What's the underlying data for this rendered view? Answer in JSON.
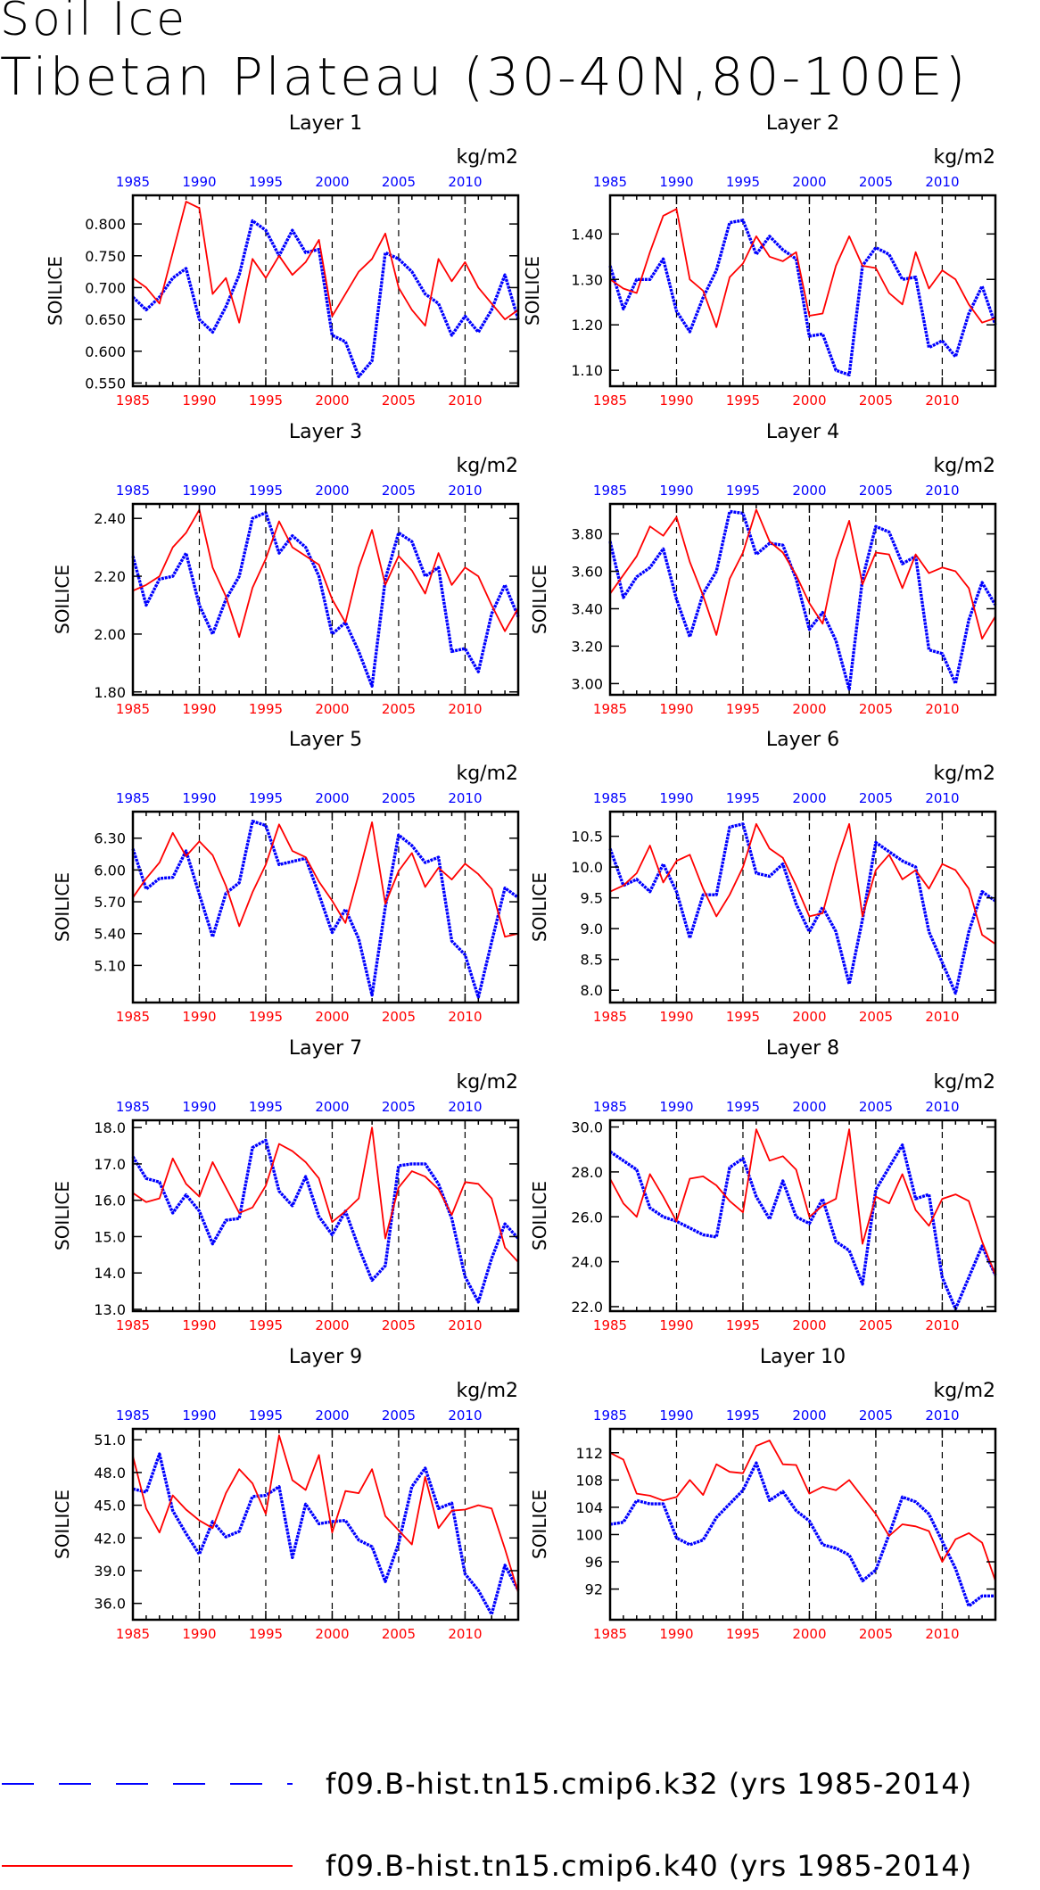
{
  "title": "Soil Ice",
  "subtitle": "Tibetan Plateau (30-40N,80-100E)",
  "legend": [
    {
      "label": "f09.B-hist.tn15.cmip6.k32 (yrs 1985-2014)",
      "color": "#0000ff",
      "style": "dashed"
    },
    {
      "label": "f09.B-hist.tn15.cmip6.k40 (yrs 1985-2014)",
      "color": "#ff0000",
      "style": "solid"
    }
  ],
  "chart_data": [
    {
      "type": "line",
      "title": "Layer 1",
      "ylabel": "SOILICE",
      "units": "kg/m2",
      "xlim": [
        1985,
        2014
      ],
      "ylim": [
        0.545,
        0.845
      ],
      "yticks": [
        "0.550",
        "0.600",
        "0.650",
        "0.700",
        "0.750",
        "0.800"
      ],
      "ytickvals": [
        0.55,
        0.6,
        0.65,
        0.7,
        0.75,
        0.8
      ],
      "xticks": [
        "1985",
        "1990",
        "1995",
        "2000",
        "2005",
        "2010"
      ],
      "series": [
        {
          "name": "f09.B-hist.tn15.cmip6.k32",
          "color": "#0000ff",
          "values": [
            0.685,
            0.665,
            0.685,
            0.715,
            0.73,
            0.65,
            0.63,
            0.67,
            0.72,
            0.805,
            0.79,
            0.75,
            0.79,
            0.755,
            0.76,
            0.625,
            0.615,
            0.56,
            0.585,
            0.755,
            0.745,
            0.725,
            0.69,
            0.675,
            0.625,
            0.655,
            0.63,
            0.665,
            0.72,
            0.65
          ]
        },
        {
          "name": "f09.B-hist.tn15.cmip6.k40",
          "color": "#ff0000",
          "values": [
            0.715,
            0.7,
            0.675,
            0.755,
            0.835,
            0.825,
            0.69,
            0.715,
            0.645,
            0.745,
            0.715,
            0.75,
            0.72,
            0.74,
            0.775,
            0.655,
            0.69,
            0.725,
            0.745,
            0.785,
            0.7,
            0.665,
            0.64,
            0.745,
            0.71,
            0.74,
            0.7,
            0.675,
            0.65,
            0.665
          ]
        }
      ]
    },
    {
      "type": "line",
      "title": "Layer 2",
      "ylabel": "SOILICE",
      "units": "kg/m2",
      "xlim": [
        1985,
        2014
      ],
      "ylim": [
        1.065,
        1.485
      ],
      "yticks": [
        "1.10",
        "1.20",
        "1.30",
        "1.40"
      ],
      "ytickvals": [
        1.1,
        1.2,
        1.3,
        1.4
      ],
      "xticks": [
        "1985",
        "1990",
        "1995",
        "2000",
        "2005",
        "2010"
      ],
      "series": [
        {
          "name": "f09.B-hist.tn15.cmip6.k32",
          "color": "#0000ff",
          "values": [
            1.33,
            1.235,
            1.3,
            1.3,
            1.345,
            1.23,
            1.185,
            1.26,
            1.32,
            1.425,
            1.43,
            1.355,
            1.395,
            1.365,
            1.345,
            1.175,
            1.18,
            1.1,
            1.09,
            1.33,
            1.37,
            1.355,
            1.3,
            1.305,
            1.15,
            1.165,
            1.13,
            1.225,
            1.285,
            1.2
          ]
        },
        {
          "name": "f09.B-hist.tn15.cmip6.k40",
          "color": "#ff0000",
          "values": [
            1.3,
            1.28,
            1.27,
            1.36,
            1.44,
            1.455,
            1.3,
            1.275,
            1.195,
            1.305,
            1.335,
            1.395,
            1.35,
            1.34,
            1.36,
            1.22,
            1.225,
            1.33,
            1.395,
            1.33,
            1.325,
            1.27,
            1.245,
            1.36,
            1.28,
            1.32,
            1.3,
            1.245,
            1.205,
            1.215
          ]
        }
      ]
    },
    {
      "type": "line",
      "title": "Layer 3",
      "ylabel": "SOILICE",
      "units": "kg/m2",
      "xlim": [
        1985,
        2014
      ],
      "ylim": [
        1.79,
        2.45
      ],
      "yticks": [
        "1.80",
        "2.00",
        "2.20",
        "2.40"
      ],
      "ytickvals": [
        1.8,
        2.0,
        2.2,
        2.4
      ],
      "xticks": [
        "1985",
        "1990",
        "1995",
        "2000",
        "2005",
        "2010"
      ],
      "series": [
        {
          "name": "f09.B-hist.tn15.cmip6.k32",
          "color": "#0000ff",
          "values": [
            2.27,
            2.1,
            2.19,
            2.2,
            2.28,
            2.1,
            2.0,
            2.12,
            2.2,
            2.4,
            2.42,
            2.28,
            2.34,
            2.3,
            2.2,
            2.0,
            2.04,
            1.94,
            1.82,
            2.19,
            2.35,
            2.32,
            2.2,
            2.23,
            1.94,
            1.95,
            1.87,
            2.07,
            2.17,
            2.06
          ]
        },
        {
          "name": "f09.B-hist.tn15.cmip6.k40",
          "color": "#ff0000",
          "values": [
            2.15,
            2.17,
            2.2,
            2.3,
            2.35,
            2.43,
            2.23,
            2.13,
            1.99,
            2.16,
            2.26,
            2.39,
            2.3,
            2.27,
            2.24,
            2.12,
            2.04,
            2.23,
            2.36,
            2.17,
            2.27,
            2.22,
            2.14,
            2.28,
            2.17,
            2.23,
            2.2,
            2.1,
            2.01,
            2.09
          ]
        }
      ]
    },
    {
      "type": "line",
      "title": "Layer 4",
      "ylabel": "SOILICE",
      "units": "kg/m2",
      "xlim": [
        1985,
        2014
      ],
      "ylim": [
        2.94,
        3.96
      ],
      "yticks": [
        "3.00",
        "3.20",
        "3.40",
        "3.60",
        "3.80"
      ],
      "ytickvals": [
        3.0,
        3.2,
        3.4,
        3.6,
        3.8
      ],
      "xticks": [
        "1985",
        "1990",
        "1995",
        "2000",
        "2005",
        "2010"
      ],
      "series": [
        {
          "name": "f09.B-hist.tn15.cmip6.k32",
          "color": "#0000ff",
          "values": [
            3.76,
            3.46,
            3.57,
            3.62,
            3.72,
            3.45,
            3.25,
            3.48,
            3.6,
            3.92,
            3.91,
            3.69,
            3.75,
            3.74,
            3.56,
            3.29,
            3.38,
            3.23,
            2.97,
            3.56,
            3.84,
            3.81,
            3.64,
            3.68,
            3.18,
            3.16,
            3.0,
            3.34,
            3.54,
            3.42
          ]
        },
        {
          "name": "f09.B-hist.tn15.cmip6.k40",
          "color": "#ff0000",
          "values": [
            3.48,
            3.58,
            3.68,
            3.84,
            3.79,
            3.89,
            3.65,
            3.47,
            3.26,
            3.56,
            3.7,
            3.93,
            3.76,
            3.7,
            3.58,
            3.43,
            3.32,
            3.66,
            3.87,
            3.53,
            3.7,
            3.69,
            3.51,
            3.69,
            3.59,
            3.62,
            3.6,
            3.51,
            3.24,
            3.36
          ]
        }
      ]
    },
    {
      "type": "line",
      "title": "Layer 5",
      "ylabel": "SOILICE",
      "units": "kg/m2",
      "xlim": [
        1985,
        2014
      ],
      "ylim": [
        4.75,
        6.55
      ],
      "yticks": [
        "5.10",
        "5.40",
        "5.70",
        "6.00",
        "6.30"
      ],
      "ytickvals": [
        5.1,
        5.4,
        5.7,
        6.0,
        6.3
      ],
      "xticks": [
        "1985",
        "1990",
        "1995",
        "2000",
        "2005",
        "2010"
      ],
      "series": [
        {
          "name": "f09.B-hist.tn15.cmip6.k32",
          "color": "#0000ff",
          "values": [
            6.2,
            5.82,
            5.92,
            5.93,
            6.18,
            5.77,
            5.37,
            5.78,
            5.88,
            6.46,
            6.42,
            6.05,
            6.08,
            6.11,
            5.77,
            5.41,
            5.63,
            5.35,
            4.82,
            5.65,
            6.33,
            6.23,
            6.07,
            6.12,
            5.33,
            5.2,
            4.8,
            5.32,
            5.83,
            5.74
          ]
        },
        {
          "name": "f09.B-hist.tn15.cmip6.k40",
          "color": "#ff0000",
          "values": [
            5.74,
            5.92,
            6.07,
            6.35,
            6.13,
            6.27,
            6.14,
            5.85,
            5.47,
            5.79,
            6.05,
            6.43,
            6.18,
            6.12,
            5.89,
            5.71,
            5.5,
            5.96,
            6.45,
            5.68,
            5.99,
            6.16,
            5.84,
            6.02,
            5.91,
            6.06,
            5.96,
            5.82,
            5.37,
            5.4
          ]
        }
      ]
    },
    {
      "type": "line",
      "title": "Layer 6",
      "ylabel": "SOILICE",
      "units": "kg/m2",
      "xlim": [
        1985,
        2014
      ],
      "ylim": [
        7.8,
        10.9
      ],
      "yticks": [
        "8.0",
        "8.5",
        "9.0",
        "9.5",
        "10.0",
        "10.5"
      ],
      "ytickvals": [
        8.0,
        8.5,
        9.0,
        9.5,
        10.0,
        10.5
      ],
      "xticks": [
        "1985",
        "1990",
        "1995",
        "2000",
        "2005",
        "2010"
      ],
      "series": [
        {
          "name": "f09.B-hist.tn15.cmip6.k32",
          "color": "#0000ff",
          "values": [
            10.3,
            9.7,
            9.8,
            9.6,
            10.05,
            9.6,
            8.85,
            9.55,
            9.55,
            10.65,
            10.7,
            9.9,
            9.85,
            10.05,
            9.4,
            8.95,
            9.35,
            8.95,
            8.1,
            9.15,
            10.4,
            10.25,
            10.1,
            10.0,
            8.95,
            8.45,
            7.95,
            8.95,
            9.6,
            9.45
          ]
        },
        {
          "name": "f09.B-hist.tn15.cmip6.k40",
          "color": "#ff0000",
          "values": [
            9.6,
            9.7,
            9.9,
            10.35,
            9.75,
            10.1,
            10.2,
            9.65,
            9.2,
            9.55,
            10.0,
            10.7,
            10.3,
            10.15,
            9.7,
            9.2,
            9.25,
            10.05,
            10.7,
            9.2,
            9.95,
            10.2,
            9.8,
            9.95,
            9.65,
            10.05,
            9.95,
            9.65,
            8.9,
            8.75
          ]
        }
      ]
    },
    {
      "type": "line",
      "title": "Layer 7",
      "ylabel": "SOILICE",
      "units": "kg/m2",
      "xlim": [
        1985,
        2014
      ],
      "ylim": [
        12.95,
        18.2
      ],
      "yticks": [
        "13.0",
        "14.0",
        "15.0",
        "16.0",
        "17.0",
        "18.0"
      ],
      "ytickvals": [
        13.0,
        14.0,
        15.0,
        16.0,
        17.0,
        18.0
      ],
      "xticks": [
        "1985",
        "1990",
        "1995",
        "2000",
        "2005",
        "2010"
      ],
      "series": [
        {
          "name": "f09.B-hist.tn15.cmip6.k32",
          "color": "#0000ff",
          "values": [
            17.2,
            16.6,
            16.5,
            15.65,
            16.15,
            15.7,
            14.8,
            15.45,
            15.5,
            17.45,
            17.65,
            16.25,
            15.85,
            16.65,
            15.55,
            15.05,
            15.7,
            14.7,
            13.8,
            14.2,
            16.95,
            17.0,
            17.0,
            16.45,
            15.5,
            13.9,
            13.2,
            14.4,
            15.35,
            14.95
          ]
        },
        {
          "name": "f09.B-hist.tn15.cmip6.k40",
          "color": "#ff0000",
          "values": [
            16.2,
            15.95,
            16.05,
            17.15,
            16.45,
            16.1,
            17.05,
            16.35,
            15.65,
            15.8,
            16.4,
            17.55,
            17.35,
            17.05,
            16.6,
            15.4,
            15.7,
            16.05,
            18.0,
            14.95,
            16.35,
            16.8,
            16.65,
            16.3,
            15.6,
            16.5,
            16.45,
            16.05,
            14.7,
            14.3
          ]
        }
      ]
    },
    {
      "type": "line",
      "title": "Layer 8",
      "ylabel": "SOILICE",
      "units": "kg/m2",
      "xlim": [
        1985,
        2014
      ],
      "ylim": [
        21.8,
        30.3
      ],
      "yticks": [
        "22.0",
        "24.0",
        "26.0",
        "28.0",
        "30.0"
      ],
      "ytickvals": [
        22.0,
        24.0,
        26.0,
        28.0,
        30.0
      ],
      "xticks": [
        "1985",
        "1990",
        "1995",
        "2000",
        "2005",
        "2010"
      ],
      "series": [
        {
          "name": "f09.B-hist.tn15.cmip6.k32",
          "color": "#0000ff",
          "values": [
            28.9,
            28.5,
            28.1,
            26.4,
            26.0,
            25.8,
            25.5,
            25.2,
            25.1,
            28.2,
            28.6,
            26.9,
            25.9,
            27.6,
            26.0,
            25.7,
            26.8,
            24.9,
            24.5,
            23.0,
            27.2,
            28.2,
            29.2,
            26.8,
            27.0,
            23.3,
            21.9,
            23.3,
            24.7,
            23.4
          ]
        },
        {
          "name": "f09.B-hist.tn15.cmip6.k40",
          "color": "#ff0000",
          "values": [
            27.7,
            26.6,
            26.0,
            27.9,
            26.9,
            25.8,
            27.7,
            27.8,
            27.4,
            26.7,
            26.2,
            29.9,
            28.5,
            28.7,
            28.1,
            26.0,
            26.5,
            26.8,
            29.9,
            24.8,
            26.9,
            26.6,
            27.9,
            26.3,
            25.6,
            26.8,
            27.0,
            26.7,
            24.9,
            23.4
          ]
        }
      ]
    },
    {
      "type": "line",
      "title": "Layer 9",
      "ylabel": "SOILICE",
      "units": "kg/m2",
      "xlim": [
        1985,
        2014
      ],
      "ylim": [
        34.5,
        52.0
      ],
      "yticks": [
        "36.0",
        "39.0",
        "42.0",
        "45.0",
        "48.0",
        "51.0"
      ],
      "ytickvals": [
        36.0,
        39.0,
        42.0,
        45.0,
        48.0,
        51.0
      ],
      "xticks": [
        "1985",
        "1990",
        "1995",
        "2000",
        "2005",
        "2010"
      ],
      "series": [
        {
          "name": "f09.B-hist.tn15.cmip6.k32",
          "color": "#0000ff",
          "values": [
            46.5,
            46.2,
            49.7,
            44.5,
            42.4,
            40.5,
            43.5,
            42.1,
            42.6,
            45.8,
            45.9,
            46.7,
            40.2,
            45.1,
            43.3,
            43.5,
            43.6,
            41.8,
            41.2,
            38.0,
            41.5,
            46.7,
            48.4,
            44.7,
            45.2,
            38.7,
            37.2,
            35.0,
            39.5,
            37.2
          ]
        },
        {
          "name": "f09.B-hist.tn15.cmip6.k40",
          "color": "#ff0000",
          "values": [
            49.5,
            44.7,
            42.5,
            45.9,
            44.6,
            43.6,
            42.9,
            46.1,
            48.3,
            47.0,
            44.2,
            51.4,
            47.3,
            46.4,
            49.6,
            42.5,
            46.3,
            46.1,
            48.3,
            44.0,
            42.7,
            41.4,
            47.6,
            42.9,
            44.5,
            44.6,
            45.0,
            44.7,
            41.0,
            37.0
          ]
        }
      ]
    },
    {
      "type": "line",
      "title": "Layer 10",
      "ylabel": "SOILICE",
      "units": "kg/m2",
      "xlim": [
        1985,
        2014
      ],
      "ylim": [
        87.5,
        115.5
      ],
      "yticks": [
        "92",
        "96",
        "100",
        "104",
        "108",
        "112"
      ],
      "ytickvals": [
        92,
        96,
        100,
        104,
        108,
        112
      ],
      "xticks": [
        "1985",
        "1990",
        "1995",
        "2000",
        "2005",
        "2010"
      ],
      "series": [
        {
          "name": "f09.B-hist.tn15.cmip6.k32",
          "color": "#0000ff",
          "values": [
            101.5,
            101.8,
            105.0,
            104.5,
            104.5,
            99.5,
            98.5,
            99.2,
            102.5,
            104.5,
            106.5,
            110.5,
            105.0,
            106.3,
            103.5,
            102.0,
            98.5,
            98.0,
            97.0,
            93.2,
            94.8,
            100.0,
            105.5,
            104.8,
            103.0,
            99.0,
            95.0,
            89.5,
            91.0,
            91.0
          ]
        },
        {
          "name": "f09.B-hist.tn15.cmip6.k40",
          "color": "#ff0000",
          "values": [
            112.0,
            111.0,
            106.0,
            105.7,
            105.0,
            105.5,
            108.0,
            105.8,
            110.3,
            109.2,
            109.0,
            113.0,
            113.8,
            110.3,
            110.2,
            106.0,
            107.0,
            106.5,
            108.0,
            105.5,
            103.0,
            99.8,
            101.5,
            101.2,
            100.5,
            96.0,
            99.3,
            100.2,
            98.8,
            93.2
          ]
        }
      ]
    }
  ]
}
